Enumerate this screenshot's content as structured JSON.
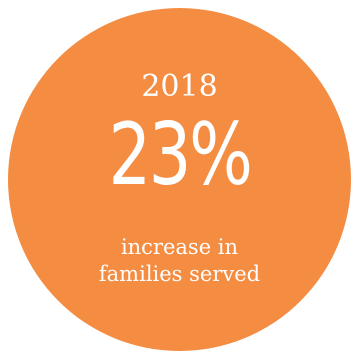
{
  "stat": {
    "year": "2018",
    "value": "23%",
    "caption_line1": "increase in",
    "caption_line2": "families served"
  },
  "colors": {
    "circle": "#f48c42",
    "text": "#ffffff",
    "background": "#ffffff"
  }
}
